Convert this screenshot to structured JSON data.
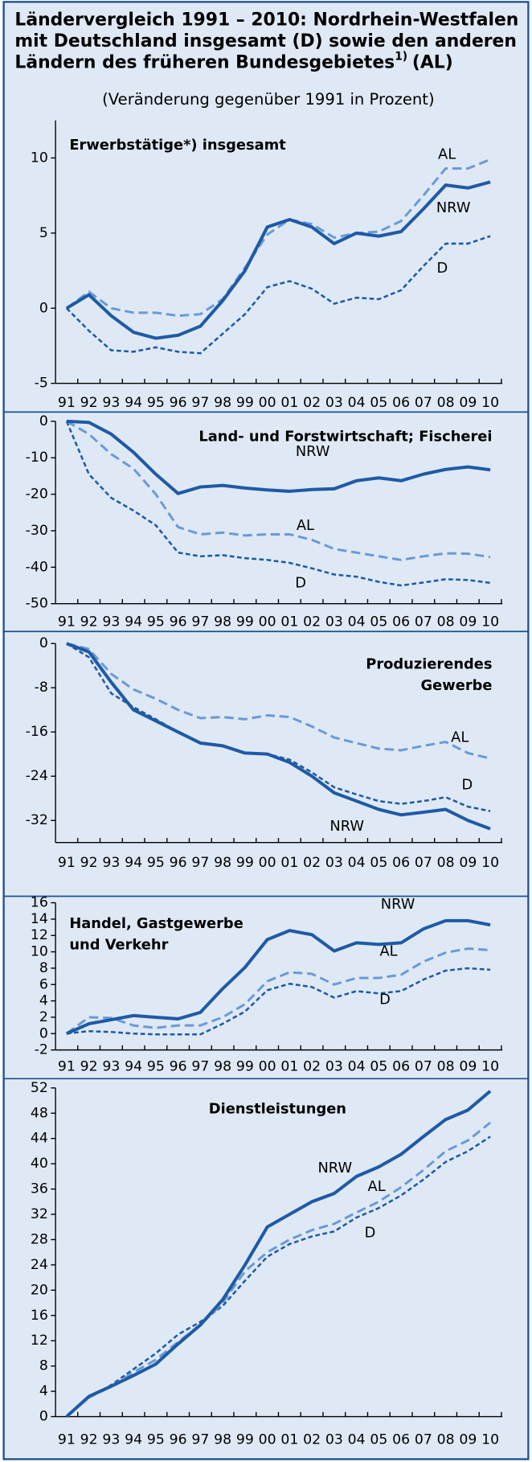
{
  "header": {
    "title_lines": [
      "Ländervergleich 1991 – 2010: Nordrhein-Westfalen",
      "mit Deutschland insgesamt (D) sowie den anderen",
      "Ländern des früheren Bundesgebietes"
    ],
    "footnote_mark": "1)",
    "title_suffix": "(AL)",
    "subtitle": "(Veränderung gegenüber 1991 in Prozent)"
  },
  "chart_data": [
    {
      "type": "line",
      "title_lines": [
        "Erwerbstätige*) insgesamt"
      ],
      "categories": [
        "91",
        "92",
        "93",
        "94",
        "95",
        "96",
        "97",
        "98",
        "99",
        "00",
        "01",
        "02",
        "03",
        "04",
        "05",
        "06",
        "07",
        "08",
        "09",
        "10"
      ],
      "ylim": [
        -5,
        12.5
      ],
      "yticks": [
        -5,
        0,
        5,
        10
      ],
      "series": [
        {
          "name": "NRW",
          "color": "#1f5aa6",
          "values": [
            0,
            0.9,
            -0.5,
            -1.6,
            -2.0,
            -1.8,
            -1.2,
            0.5,
            2.5,
            5.4,
            5.9,
            5.4,
            4.3,
            5.0,
            4.8,
            5.1,
            6.6,
            8.2,
            8.0,
            8.4
          ]
        },
        {
          "name": "AL",
          "color": "#6a9ad6",
          "values": [
            0,
            1.1,
            0,
            -0.3,
            -0.3,
            -0.5,
            -0.4,
            0.6,
            2.7,
            4.9,
            5.9,
            5.6,
            4.7,
            5.0,
            5.1,
            5.8,
            7.5,
            9.3,
            9.3,
            9.9
          ]
        },
        {
          "name": "D",
          "color": "#1f5aa6",
          "values": [
            0,
            -1.5,
            -2.8,
            -2.9,
            -2.6,
            -2.9,
            -3.0,
            -1.7,
            -0.4,
            1.4,
            1.8,
            1.3,
            0.3,
            0.7,
            0.6,
            1.2,
            2.8,
            4.3,
            4.3,
            4.8
          ]
        }
      ]
    },
    {
      "type": "line",
      "title_lines": [
        "Land- und Forstwirtschaft; Fischerei"
      ],
      "categories": [
        "91",
        "92",
        "93",
        "94",
        "95",
        "96",
        "97",
        "98",
        "99",
        "00",
        "01",
        "02",
        "03",
        "04",
        "05",
        "06",
        "07",
        "08",
        "09",
        "10"
      ],
      "ylim": [
        -50,
        0
      ],
      "yticks": [
        0,
        -10,
        -20,
        -30,
        -40,
        -50
      ],
      "series": [
        {
          "name": "NRW",
          "color": "#1f5aa6",
          "values": [
            0,
            -0.3,
            -3.5,
            -8.5,
            -14.5,
            -19.8,
            -18.0,
            -17.6,
            -18.3,
            -18.8,
            -19.2,
            -18.7,
            -18.5,
            -16.3,
            -15.5,
            -16.3,
            -14.5,
            -13.2,
            -12.5,
            -13.3
          ]
        },
        {
          "name": "AL",
          "color": "#6a9ad6",
          "values": [
            0,
            -3.5,
            -9,
            -13,
            -20,
            -29,
            -31,
            -30.5,
            -31.3,
            -31,
            -31,
            -32.5,
            -35,
            -36,
            -37,
            -38,
            -37,
            -36.2,
            -36.3,
            -37.2
          ]
        },
        {
          "name": "D",
          "color": "#1f5aa6",
          "values": [
            0,
            -14.5,
            -21,
            -24.5,
            -28.5,
            -36,
            -37,
            -36.7,
            -37.5,
            -38,
            -38.8,
            -40.3,
            -42,
            -42.6,
            -44,
            -45,
            -44.2,
            -43.3,
            -43.5,
            -44.3
          ]
        }
      ]
    },
    {
      "type": "line",
      "title_lines": [
        "Produzierendes",
        "Gewerbe"
      ],
      "categories": [
        "91",
        "92",
        "93",
        "94",
        "95",
        "96",
        "97",
        "98",
        "99",
        "00",
        "01",
        "02",
        "03",
        "04",
        "05",
        "06",
        "07",
        "08",
        "09",
        "10"
      ],
      "ylim": [
        -36,
        0
      ],
      "yticks": [
        0,
        -8,
        -16,
        -24,
        -32
      ],
      "series": [
        {
          "name": "NRW",
          "color": "#1f5aa6",
          "values": [
            0,
            -1.5,
            -7,
            -12,
            -14,
            -16,
            -18,
            -18.5,
            -19.8,
            -20,
            -21.5,
            -24,
            -27,
            -28.5,
            -30,
            -31,
            -30.5,
            -30,
            -32,
            -33.5
          ]
        },
        {
          "name": "AL",
          "color": "#6a9ad6",
          "values": [
            0,
            -1,
            -5.5,
            -8.3,
            -10,
            -12,
            -13.5,
            -13.3,
            -13.7,
            -13,
            -13.3,
            -15,
            -17,
            -18,
            -19,
            -19.3,
            -18.5,
            -17.8,
            -19.8,
            -20.8
          ]
        },
        {
          "name": "D",
          "color": "#1f5aa6",
          "values": [
            0,
            -2.5,
            -9,
            -11.5,
            -13.7,
            -16,
            -18,
            -18.5,
            -19.8,
            -20,
            -21,
            -23.3,
            -26,
            -27.3,
            -28.5,
            -29,
            -28.5,
            -27.8,
            -29.5,
            -30.3
          ]
        }
      ]
    },
    {
      "type": "line",
      "title_lines": [
        "Handel, Gastgewerbe",
        "und Verkehr"
      ],
      "categories": [
        "91",
        "92",
        "93",
        "94",
        "95",
        "96",
        "97",
        "98",
        "99",
        "00",
        "01",
        "02",
        "03",
        "04",
        "05",
        "06",
        "07",
        "08",
        "09",
        "10"
      ],
      "ylim": [
        -2,
        16
      ],
      "yticks": [
        -2,
        0,
        2,
        4,
        6,
        8,
        10,
        12,
        14,
        16
      ],
      "series": [
        {
          "name": "NRW",
          "color": "#1f5aa6",
          "values": [
            0,
            1.2,
            1.7,
            2.2,
            2.0,
            1.8,
            2.6,
            5.5,
            8.1,
            11.5,
            12.6,
            12.1,
            10.1,
            11.1,
            10.9,
            11.1,
            12.8,
            13.8,
            13.8,
            13.3
          ]
        },
        {
          "name": "AL",
          "color": "#6a9ad6",
          "values": [
            0,
            2.0,
            1.9,
            1.0,
            0.7,
            1.0,
            1.0,
            2.0,
            3.6,
            6.4,
            7.5,
            7.3,
            6.0,
            6.8,
            6.8,
            7.2,
            8.8,
            9.9,
            10.4,
            10.2
          ]
        },
        {
          "name": "D",
          "color": "#1f5aa6",
          "values": [
            0,
            0.3,
            0.2,
            0,
            -0.1,
            -0.1,
            -0.1,
            1.2,
            2.7,
            5.3,
            6.1,
            5.7,
            4.4,
            5.2,
            4.9,
            5.2,
            6.6,
            7.7,
            8.0,
            7.8
          ]
        }
      ]
    },
    {
      "type": "line",
      "title_lines": [
        "Dienstleistungen"
      ],
      "categories": [
        "91",
        "92",
        "93",
        "94",
        "95",
        "96",
        "97",
        "98",
        "99",
        "00",
        "01",
        "02",
        "03",
        "04",
        "05",
        "06",
        "07",
        "08",
        "09",
        "10"
      ],
      "ylim": [
        0,
        52
      ],
      "yticks": [
        0,
        4,
        8,
        12,
        16,
        20,
        24,
        28,
        32,
        36,
        40,
        44,
        48,
        52
      ],
      "series": [
        {
          "name": "NRW",
          "color": "#1f5aa6",
          "values": [
            0,
            3.2,
            4.8,
            6.5,
            8.3,
            11.5,
            14.5,
            18.5,
            24,
            30,
            32,
            34,
            35.3,
            38,
            39.5,
            41.5,
            44.3,
            47,
            48.5,
            51.5
          ]
        },
        {
          "name": "AL",
          "color": "#6a9ad6",
          "values": [
            0,
            3,
            4.8,
            7,
            9,
            11.8,
            14.5,
            18,
            23,
            26,
            28,
            29.5,
            30.5,
            32.3,
            34,
            36.3,
            39,
            42,
            43.7,
            46.5
          ]
        },
        {
          "name": "D",
          "color": "#1f5aa6",
          "values": [
            0,
            3,
            5,
            7.5,
            10,
            13,
            15,
            17.5,
            21.5,
            25.3,
            27.3,
            28.5,
            29.3,
            31.5,
            33,
            35,
            37.5,
            40.3,
            42,
            44.3
          ]
        }
      ]
    }
  ]
}
